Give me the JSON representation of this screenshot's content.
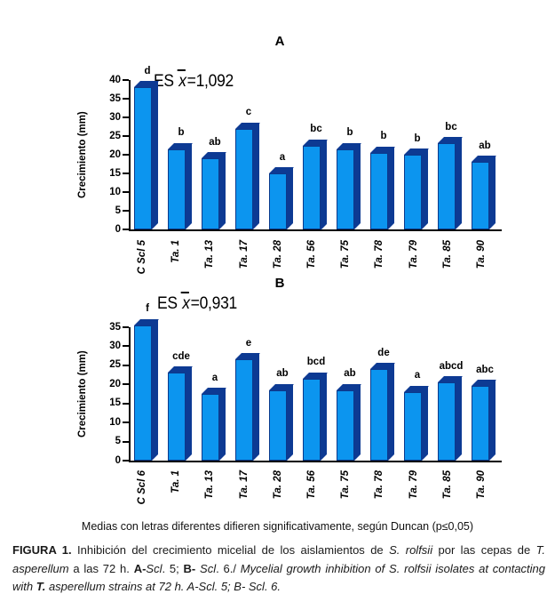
{
  "colors": {
    "bar_front": "#0c95ef",
    "bar_side": "#0d3a93",
    "axis": "#000000",
    "background": "#ffffff"
  },
  "chart_data": [
    {
      "type": "bar",
      "panel": "A",
      "title": "A",
      "es_label": {
        "prefix": "ES ",
        "variable": "x",
        "value": "=1,092"
      },
      "ylabel": "Crecimiento (mm)",
      "xlabel": "",
      "ylim": [
        0,
        40
      ],
      "ytick_step": 5,
      "grid": false,
      "legend": "none",
      "categories": [
        "C Scl 5",
        "Ta. 1",
        "Ta. 13",
        "Ta. 17",
        "Ta. 28",
        "Ta. 56",
        "Ta. 75",
        "Ta. 78",
        "Ta. 79",
        "Ta. 85",
        "Ta. 90"
      ],
      "values": [
        38,
        21.5,
        19,
        27,
        15,
        22.5,
        21.5,
        20.5,
        20,
        23,
        18
      ],
      "letters": [
        "d",
        "b",
        "ab",
        "c",
        "a",
        "bc",
        "b",
        "b",
        "b",
        "bc",
        "ab"
      ]
    },
    {
      "type": "bar",
      "panel": "B",
      "title": "B",
      "es_label": {
        "prefix": "ES ",
        "variable": "x",
        "value": "=0,931"
      },
      "ylabel": "Crecimiento (mm)",
      "xlabel": "",
      "ylim": [
        0,
        35
      ],
      "ytick_step": 5,
      "grid": false,
      "legend": "none",
      "categories": [
        "C Scl 6",
        "Ta. 1",
        "Ta. 13",
        "Ta. 17",
        "Ta. 28",
        "Ta. 56",
        "Ta. 75",
        "Ta. 78",
        "Ta. 79",
        "Ta. 85",
        "Ta. 90"
      ],
      "values": [
        35.5,
        23,
        17.5,
        26.5,
        18.5,
        21.5,
        18.5,
        24,
        18,
        20.5,
        19.5
      ],
      "letters": [
        "f",
        "cde",
        "a",
        "e",
        "ab",
        "bcd",
        "ab",
        "de",
        "a",
        "abcd",
        "abc"
      ]
    }
  ],
  "footnote": "Medias con letras diferentes difieren significativamente, según Duncan (p≤0,05)",
  "caption": {
    "parts": [
      {
        "text": "FIGURA 1."
      },
      {
        "text": " Inhibición del crecimiento micelial de los aislamientos de "
      },
      {
        "text": "S. rolfsii"
      },
      {
        "text": " por las cepas de "
      },
      {
        "text": "T. asperellum"
      },
      {
        "text": " a las 72 h. "
      },
      {
        "text": "A-"
      },
      {
        "text": "Scl"
      },
      {
        "text": ". 5; "
      },
      {
        "text": "B- "
      },
      {
        "text": "Scl"
      },
      {
        "text": ". 6./ "
      },
      {
        "text": "Mycelial growth inhibition of S. rolfsii isolates at contacting with "
      },
      {
        "text": "T."
      },
      {
        "text": " asperellum strains at 72 h. A-Scl. 5; B- Scl. 6."
      }
    ]
  }
}
